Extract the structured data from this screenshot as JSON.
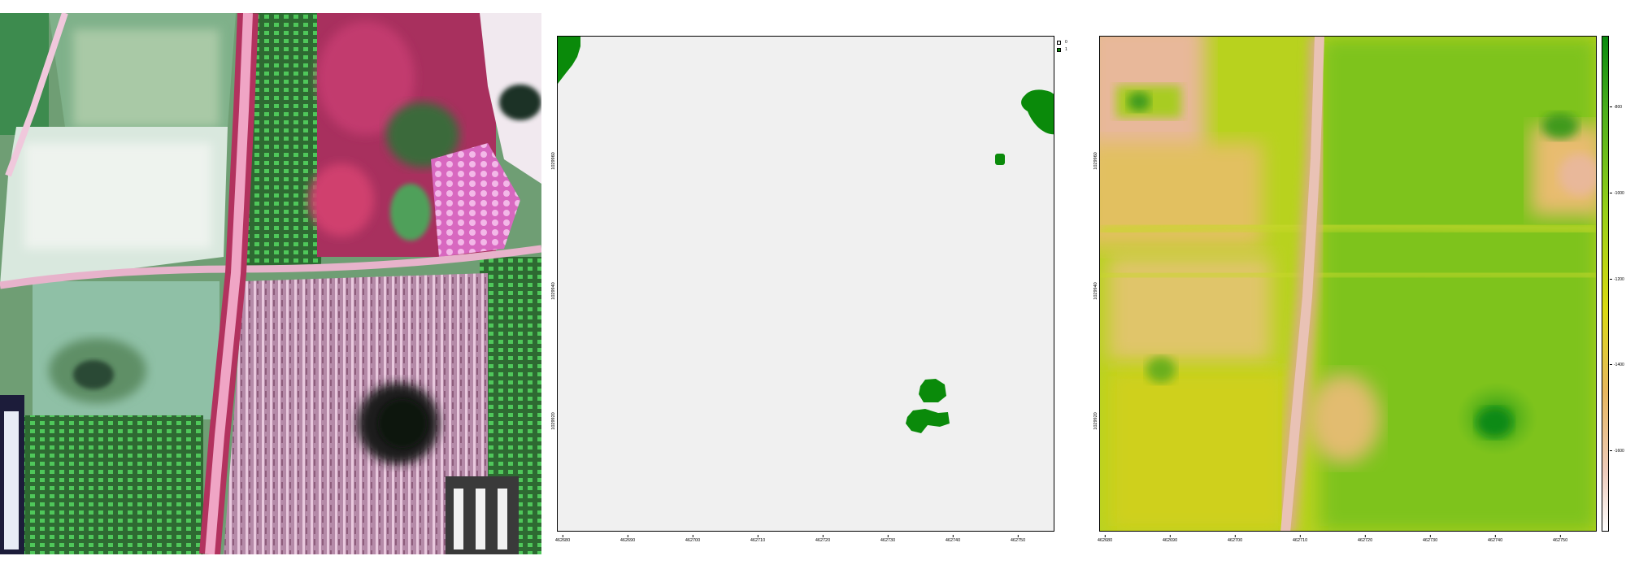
{
  "class_map": {
    "legend": [
      {
        "label": "0",
        "color": "#f0f0f0"
      },
      {
        "label": "1",
        "color": "#0a8a0a"
      }
    ],
    "x_ticks": [
      "462680",
      "462690",
      "462700",
      "462710",
      "462720",
      "462730",
      "462740",
      "462750"
    ],
    "y_ticks": [
      "1029960",
      "1029940",
      "1029920"
    ]
  },
  "cont_map": {
    "x_ticks": [
      "462680",
      "462690",
      "462700",
      "462710",
      "462720",
      "462730",
      "462740",
      "462750"
    ],
    "y_ticks": [
      "1029960",
      "1029940",
      "1029920"
    ],
    "colorbar_ticks": [
      "-800",
      "-1000",
      "-1200",
      "-1400",
      "-1600"
    ],
    "colors": {
      "high": "#0a8a10",
      "mid": "#dada12",
      "low": "#ffffff"
    }
  }
}
